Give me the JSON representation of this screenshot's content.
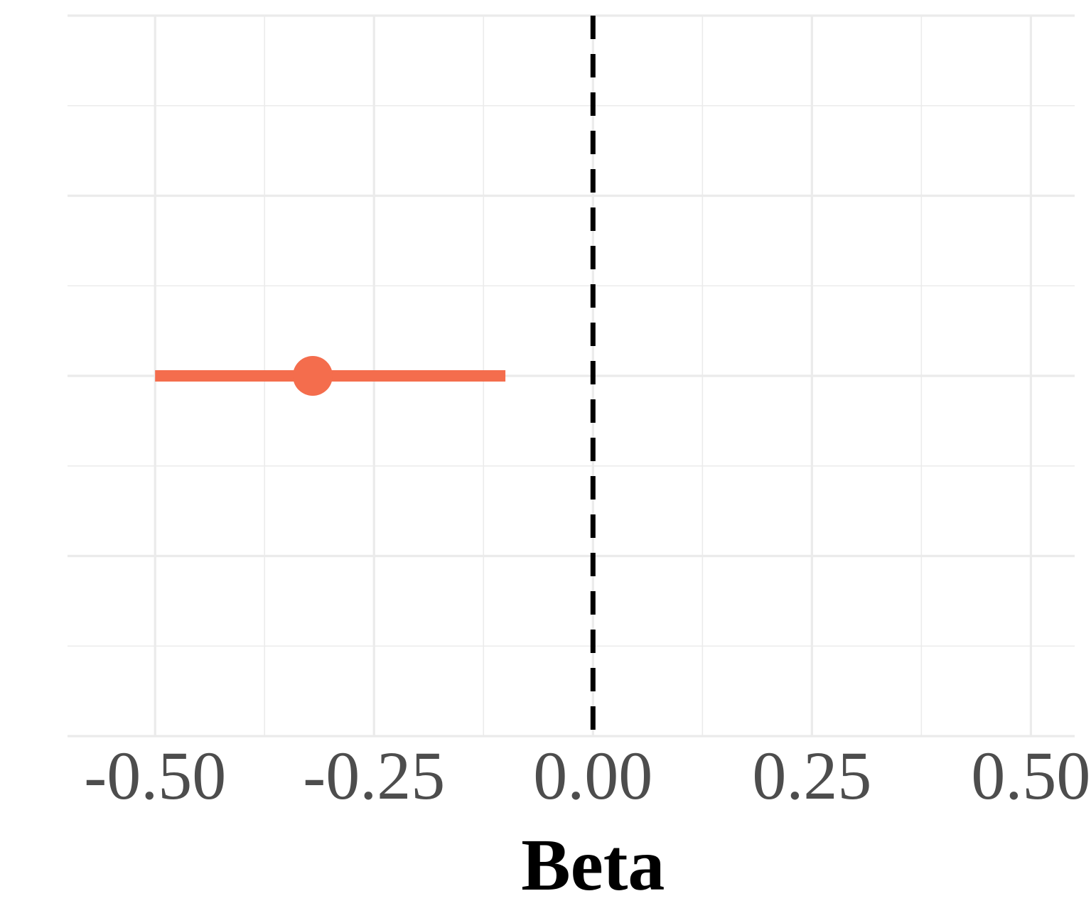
{
  "chart_data": {
    "type": "scatter",
    "xlabel": "Beta",
    "ylabel": "",
    "title": "",
    "xlim": [
      -0.6,
      0.55
    ],
    "ylim": [
      0,
      4
    ],
    "x_ticks": [
      -0.5,
      -0.25,
      0.0,
      0.25,
      0.5
    ],
    "x_tick_labels": [
      "-0.50",
      "-0.25",
      "0.00",
      "0.25",
      "0.50"
    ],
    "y_ticks_major": [
      0,
      1,
      2,
      3,
      4
    ],
    "grid": true,
    "reference_line": {
      "x": 0,
      "style": "dashed",
      "color": "#000000"
    },
    "points": [
      {
        "estimate": -0.32,
        "ci_low": -0.5,
        "ci_high": -0.1,
        "y": 2
      }
    ],
    "colors": {
      "point": "#F46D4D",
      "grid": "#EBEBEB",
      "tick_text": "#4D4D4D",
      "axis_title": "#000000"
    }
  }
}
